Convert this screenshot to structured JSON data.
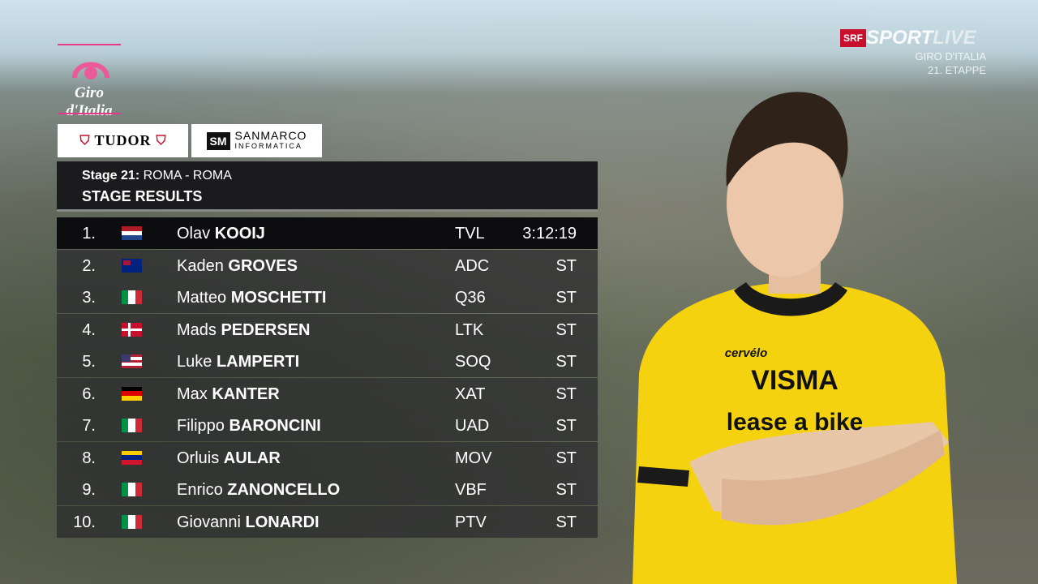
{
  "broadcaster": {
    "logo": "SRF",
    "brand": "SPORT",
    "live": "LIVE",
    "event": "GIRO D'ITALIA",
    "stage": "21. ETAPPE"
  },
  "race_logo": "Giro d'Italia",
  "sponsors": [
    {
      "name": "TUDOR"
    },
    {
      "name": "SANMARCO",
      "sub": "INFORMATICA"
    }
  ],
  "panel": {
    "stage_label": "Stage 21:",
    "route": "ROMA - ROMA",
    "title": "STAGE RESULTS",
    "rows": [
      {
        "rank": "1.",
        "first": "Olav",
        "last": "KOOIJ",
        "team": "TVL",
        "time": "3:12:19"
      },
      {
        "rank": "2.",
        "first": "Kaden",
        "last": "GROVES",
        "team": "ADC",
        "time": "ST"
      },
      {
        "rank": "3.",
        "first": "Matteo",
        "last": "MOSCHETTI",
        "team": "Q36",
        "time": "ST"
      },
      {
        "rank": "4.",
        "first": "Mads",
        "last": "PEDERSEN",
        "team": "LTK",
        "time": "ST"
      },
      {
        "rank": "5.",
        "first": "Luke",
        "last": "LAMPERTI",
        "team": "SOQ",
        "time": "ST"
      },
      {
        "rank": "6.",
        "first": "Max",
        "last": "KANTER",
        "team": "XAT",
        "time": "ST"
      },
      {
        "rank": "7.",
        "first": "Filippo",
        "last": "BARONCINI",
        "team": "UAD",
        "time": "ST"
      },
      {
        "rank": "8.",
        "first": "Orluis",
        "last": "AULAR",
        "team": "MOV",
        "time": "ST"
      },
      {
        "rank": "9.",
        "first": "Enrico",
        "last": "ZANONCELLO",
        "team": "VBF",
        "time": "ST"
      },
      {
        "rank": "10.",
        "first": "Giovanni",
        "last": "LONARDI",
        "team": "PTV",
        "time": "ST"
      }
    ]
  },
  "jersey": {
    "brand": "VISMA",
    "sponsor": "lease a bike",
    "bike": "cervélo"
  }
}
